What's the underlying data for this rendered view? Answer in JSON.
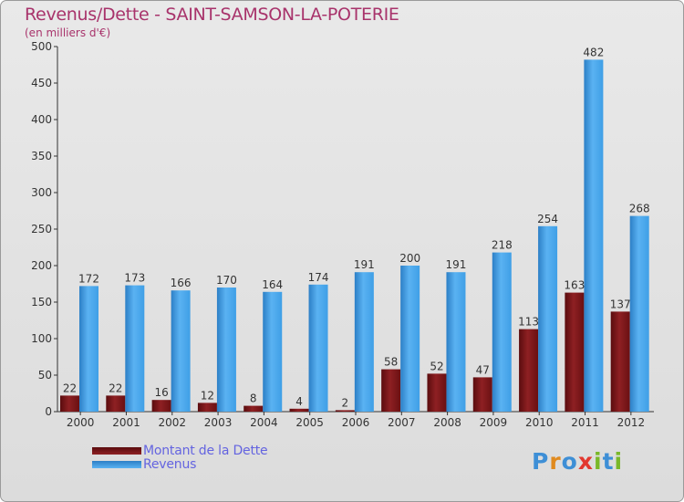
{
  "header": {
    "title": "Revenus/Dette - SAINT-SAMSON-LA-POTERIE",
    "subtitle": "(en milliers d'€)"
  },
  "legend": {
    "items": [
      {
        "label": "Montant de la Dette",
        "color": "#7a1416"
      },
      {
        "label": "Revenus",
        "color": "#3f9fe6"
      }
    ]
  },
  "brand": {
    "letters": [
      "P",
      "r",
      "o",
      "x",
      "i",
      "t",
      "i"
    ],
    "colors": [
      "#3e8fd6",
      "#e08a1e",
      "#3e8fd6",
      "#e2382f",
      "#7ab829",
      "#3e8fd6",
      "#7ab829"
    ]
  },
  "chart_data": {
    "type": "bar",
    "categories": [
      "2000",
      "2001",
      "2002",
      "2003",
      "2004",
      "2005",
      "2006",
      "2007",
      "2008",
      "2009",
      "2010",
      "2011",
      "2012"
    ],
    "series": [
      {
        "name": "Montant de la Dette",
        "values": [
          22,
          22,
          16,
          12,
          8,
          4,
          2,
          58,
          52,
          47,
          113,
          163,
          137
        ],
        "color": "#7a1416"
      },
      {
        "name": "Revenus",
        "values": [
          172,
          173,
          166,
          170,
          164,
          174,
          191,
          200,
          191,
          218,
          254,
          482,
          268
        ],
        "color": "#3f9fe6"
      }
    ],
    "ylim": [
      0,
      500
    ],
    "yticks": [
      0,
      50,
      100,
      150,
      200,
      250,
      300,
      350,
      400,
      450,
      500
    ],
    "grid": false,
    "legend_position": "bottom-left"
  }
}
